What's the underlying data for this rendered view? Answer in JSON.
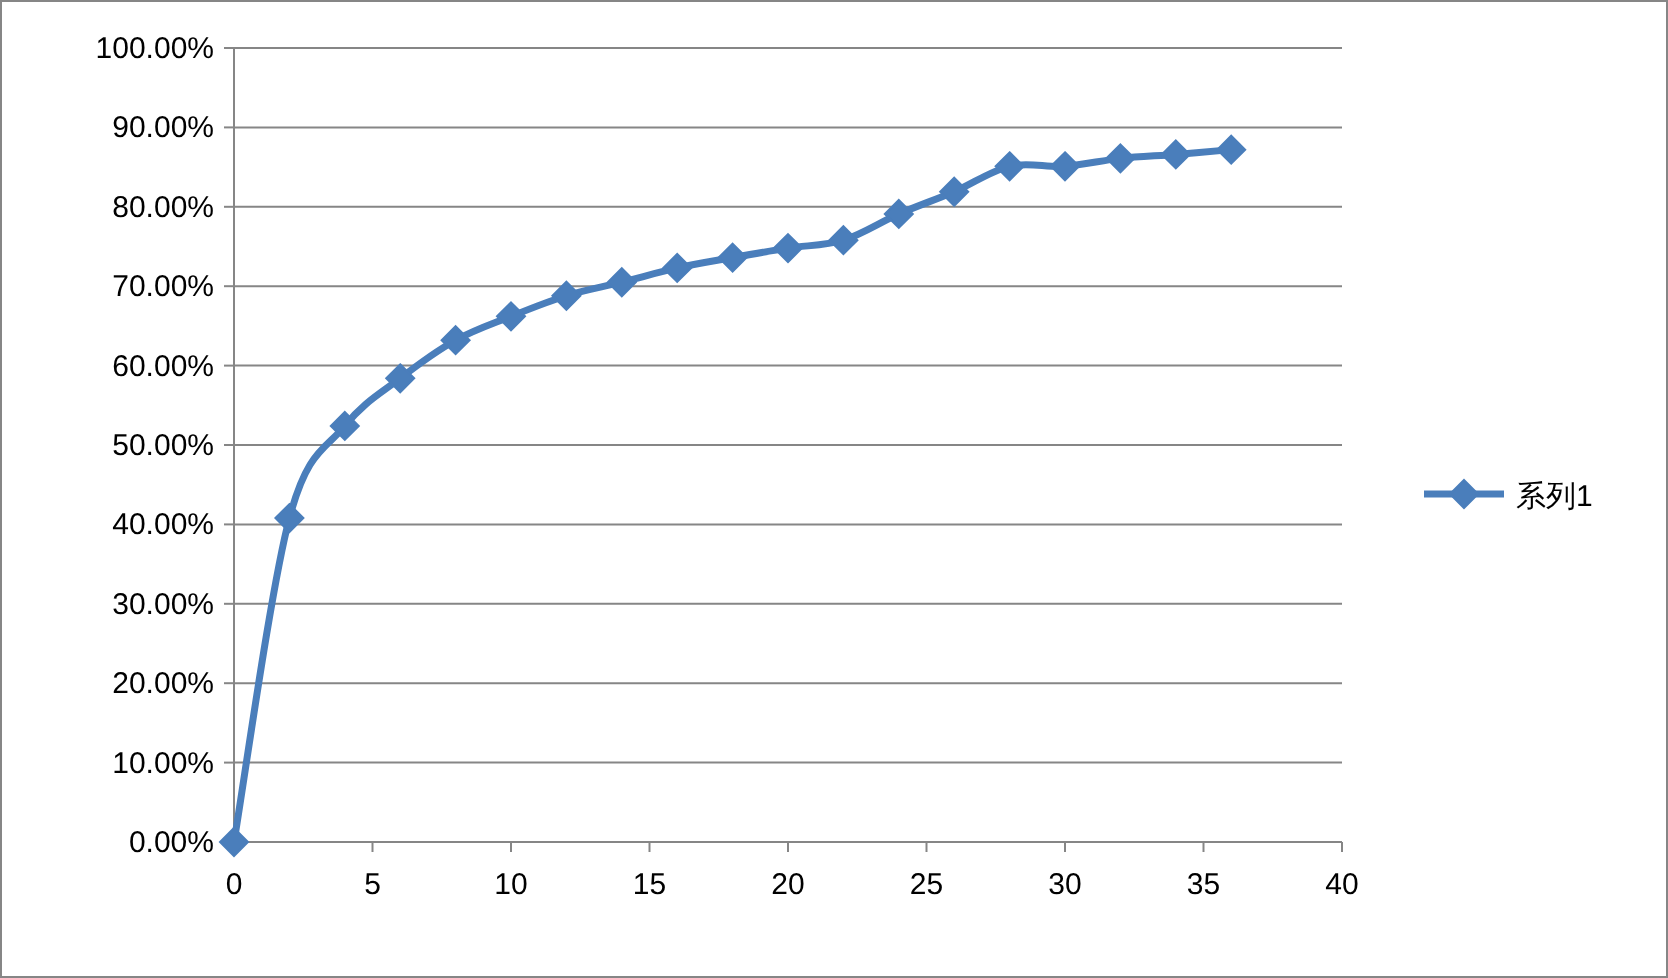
{
  "chart_data": {
    "type": "line",
    "x": [
      0,
      2,
      4,
      6,
      8,
      10,
      12,
      14,
      16,
      18,
      20,
      22,
      24,
      26,
      28,
      30,
      32,
      34,
      36
    ],
    "series": [
      {
        "name": "系列1",
        "color": "#4a7ebb",
        "values": [
          0,
          40.8,
          52.4,
          58.4,
          63.2,
          66.2,
          68.8,
          70.5,
          72.3,
          73.6,
          74.8,
          75.8,
          79.1,
          81.9,
          85.1,
          85.1,
          86.1,
          86.6,
          87.2
        ]
      }
    ],
    "xlim": [
      0,
      40
    ],
    "xticks": [
      0,
      5,
      10,
      15,
      20,
      25,
      30,
      35,
      40
    ],
    "ylim": [
      0,
      100
    ],
    "yticks": [
      {
        "value": 0,
        "label": "0.00%"
      },
      {
        "value": 10,
        "label": "10.00%"
      },
      {
        "value": 20,
        "label": "20.00%"
      },
      {
        "value": 30,
        "label": "30.00%"
      },
      {
        "value": 40,
        "label": "40.00%"
      },
      {
        "value": 50,
        "label": "50.00%"
      },
      {
        "value": 60,
        "label": "60.00%"
      },
      {
        "value": 70,
        "label": "70.00%"
      },
      {
        "value": 80,
        "label": "80.00%"
      },
      {
        "value": 90,
        "label": "90.00%"
      },
      {
        "value": 100,
        "label": "100.00%"
      }
    ],
    "grid": "y",
    "legend": "right",
    "marker": "diamond",
    "line_style": "solid"
  }
}
